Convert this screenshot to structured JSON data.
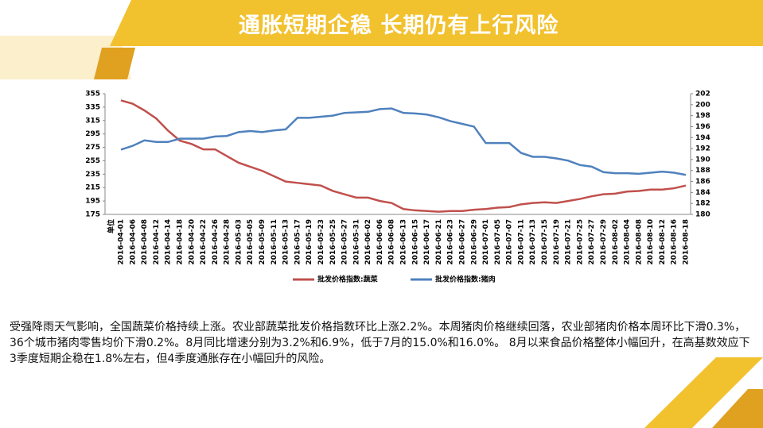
{
  "header": {
    "title": "通胀短期企稳 长期仍有上行风险"
  },
  "chart_data": {
    "type": "line",
    "x_label": "单位",
    "categories": [
      "2016-04-01",
      "2016-04-06",
      "2016-04-08",
      "2016-04-12",
      "2016-04-14",
      "2016-04-18",
      "2016-04-20",
      "2016-04-22",
      "2016-04-26",
      "2016-04-28",
      "2016-05-03",
      "2016-05-05",
      "2016-05-09",
      "2016-05-11",
      "2016-05-13",
      "2016-05-17",
      "2016-05-19",
      "2016-05-23",
      "2016-05-25",
      "2016-05-27",
      "2016-05-31",
      "2016-06-02",
      "2016-06-06",
      "2016-06-08",
      "2016-06-13",
      "2016-06-15",
      "2016-06-17",
      "2016-06-21",
      "2016-06-23",
      "2016-06-27",
      "2016-06-29",
      "2016-07-01",
      "2016-07-05",
      "2016-07-07",
      "2016-07-11",
      "2016-07-13",
      "2016-07-15",
      "2016-07-19",
      "2016-07-21",
      "2016-07-25",
      "2016-07-27",
      "2016-07-29",
      "2016-08-02",
      "2016-08-04",
      "2016-08-08",
      "2016-08-10",
      "2016-08-12",
      "2016-08-16",
      "2016-08-18"
    ],
    "series": [
      {
        "name": "批发价格指数:蔬菜",
        "color": "#c0504d",
        "values": [
          345,
          340,
          330,
          318,
          300,
          285,
          280,
          272,
          272,
          262,
          252,
          246,
          240,
          232,
          224,
          222,
          220,
          218,
          210,
          205,
          200,
          200,
          195,
          192,
          183,
          181,
          180,
          179,
          180,
          180,
          182,
          183,
          185,
          186,
          190,
          192,
          193,
          192,
          195,
          198,
          202,
          205,
          206,
          209,
          210,
          212,
          212,
          214,
          218
        ]
      },
      {
        "name": "批发价格指数:猪肉",
        "color": "#4f81bd",
        "axis": "y2",
        "values": [
          191.8,
          192.5,
          193.5,
          193.2,
          193.2,
          193.8,
          193.8,
          193.8,
          194.2,
          194.3,
          195.0,
          195.2,
          195.0,
          195.3,
          195.5,
          197.6,
          197.6,
          197.8,
          198.0,
          198.5,
          198.6,
          198.7,
          199.2,
          199.3,
          198.5,
          198.4,
          198.2,
          197.7,
          197.0,
          196.5,
          196.0,
          193.0,
          193.0,
          193.0,
          191.2,
          190.5,
          190.5,
          190.2,
          189.8,
          189.0,
          188.7,
          187.7,
          187.5,
          187.5,
          187.4,
          187.6,
          187.8,
          187.6,
          187.2
        ]
      }
    ],
    "ylim": [
      175,
      355
    ],
    "yticks": [
      175,
      195,
      215,
      235,
      255,
      275,
      295,
      315,
      335,
      355
    ],
    "y2lim": [
      180,
      202
    ],
    "y2ticks": [
      180,
      182,
      184,
      186,
      188,
      190,
      192,
      194,
      196,
      198,
      200,
      202
    ],
    "grid": false,
    "legend": "bottom"
  },
  "body": {
    "text": "受强降雨天气影响，全国蔬菜价格持续上涨。农业部蔬菜批发价格指数环比上涨2.2%。本周猪肉价格继续回落，农业部猪肉价格本周环比下滑0.3%，36个城市猪肉零售均价下滑0.2%。8月同比增速分别为3.2%和6.9%，低于7月的15.0%和16.0%。 8月以来食品价格整体小幅回升，在高基数效应下3季度短期企稳在1.8%左右，但4季度通胀存在小幅回升的风险。"
  }
}
